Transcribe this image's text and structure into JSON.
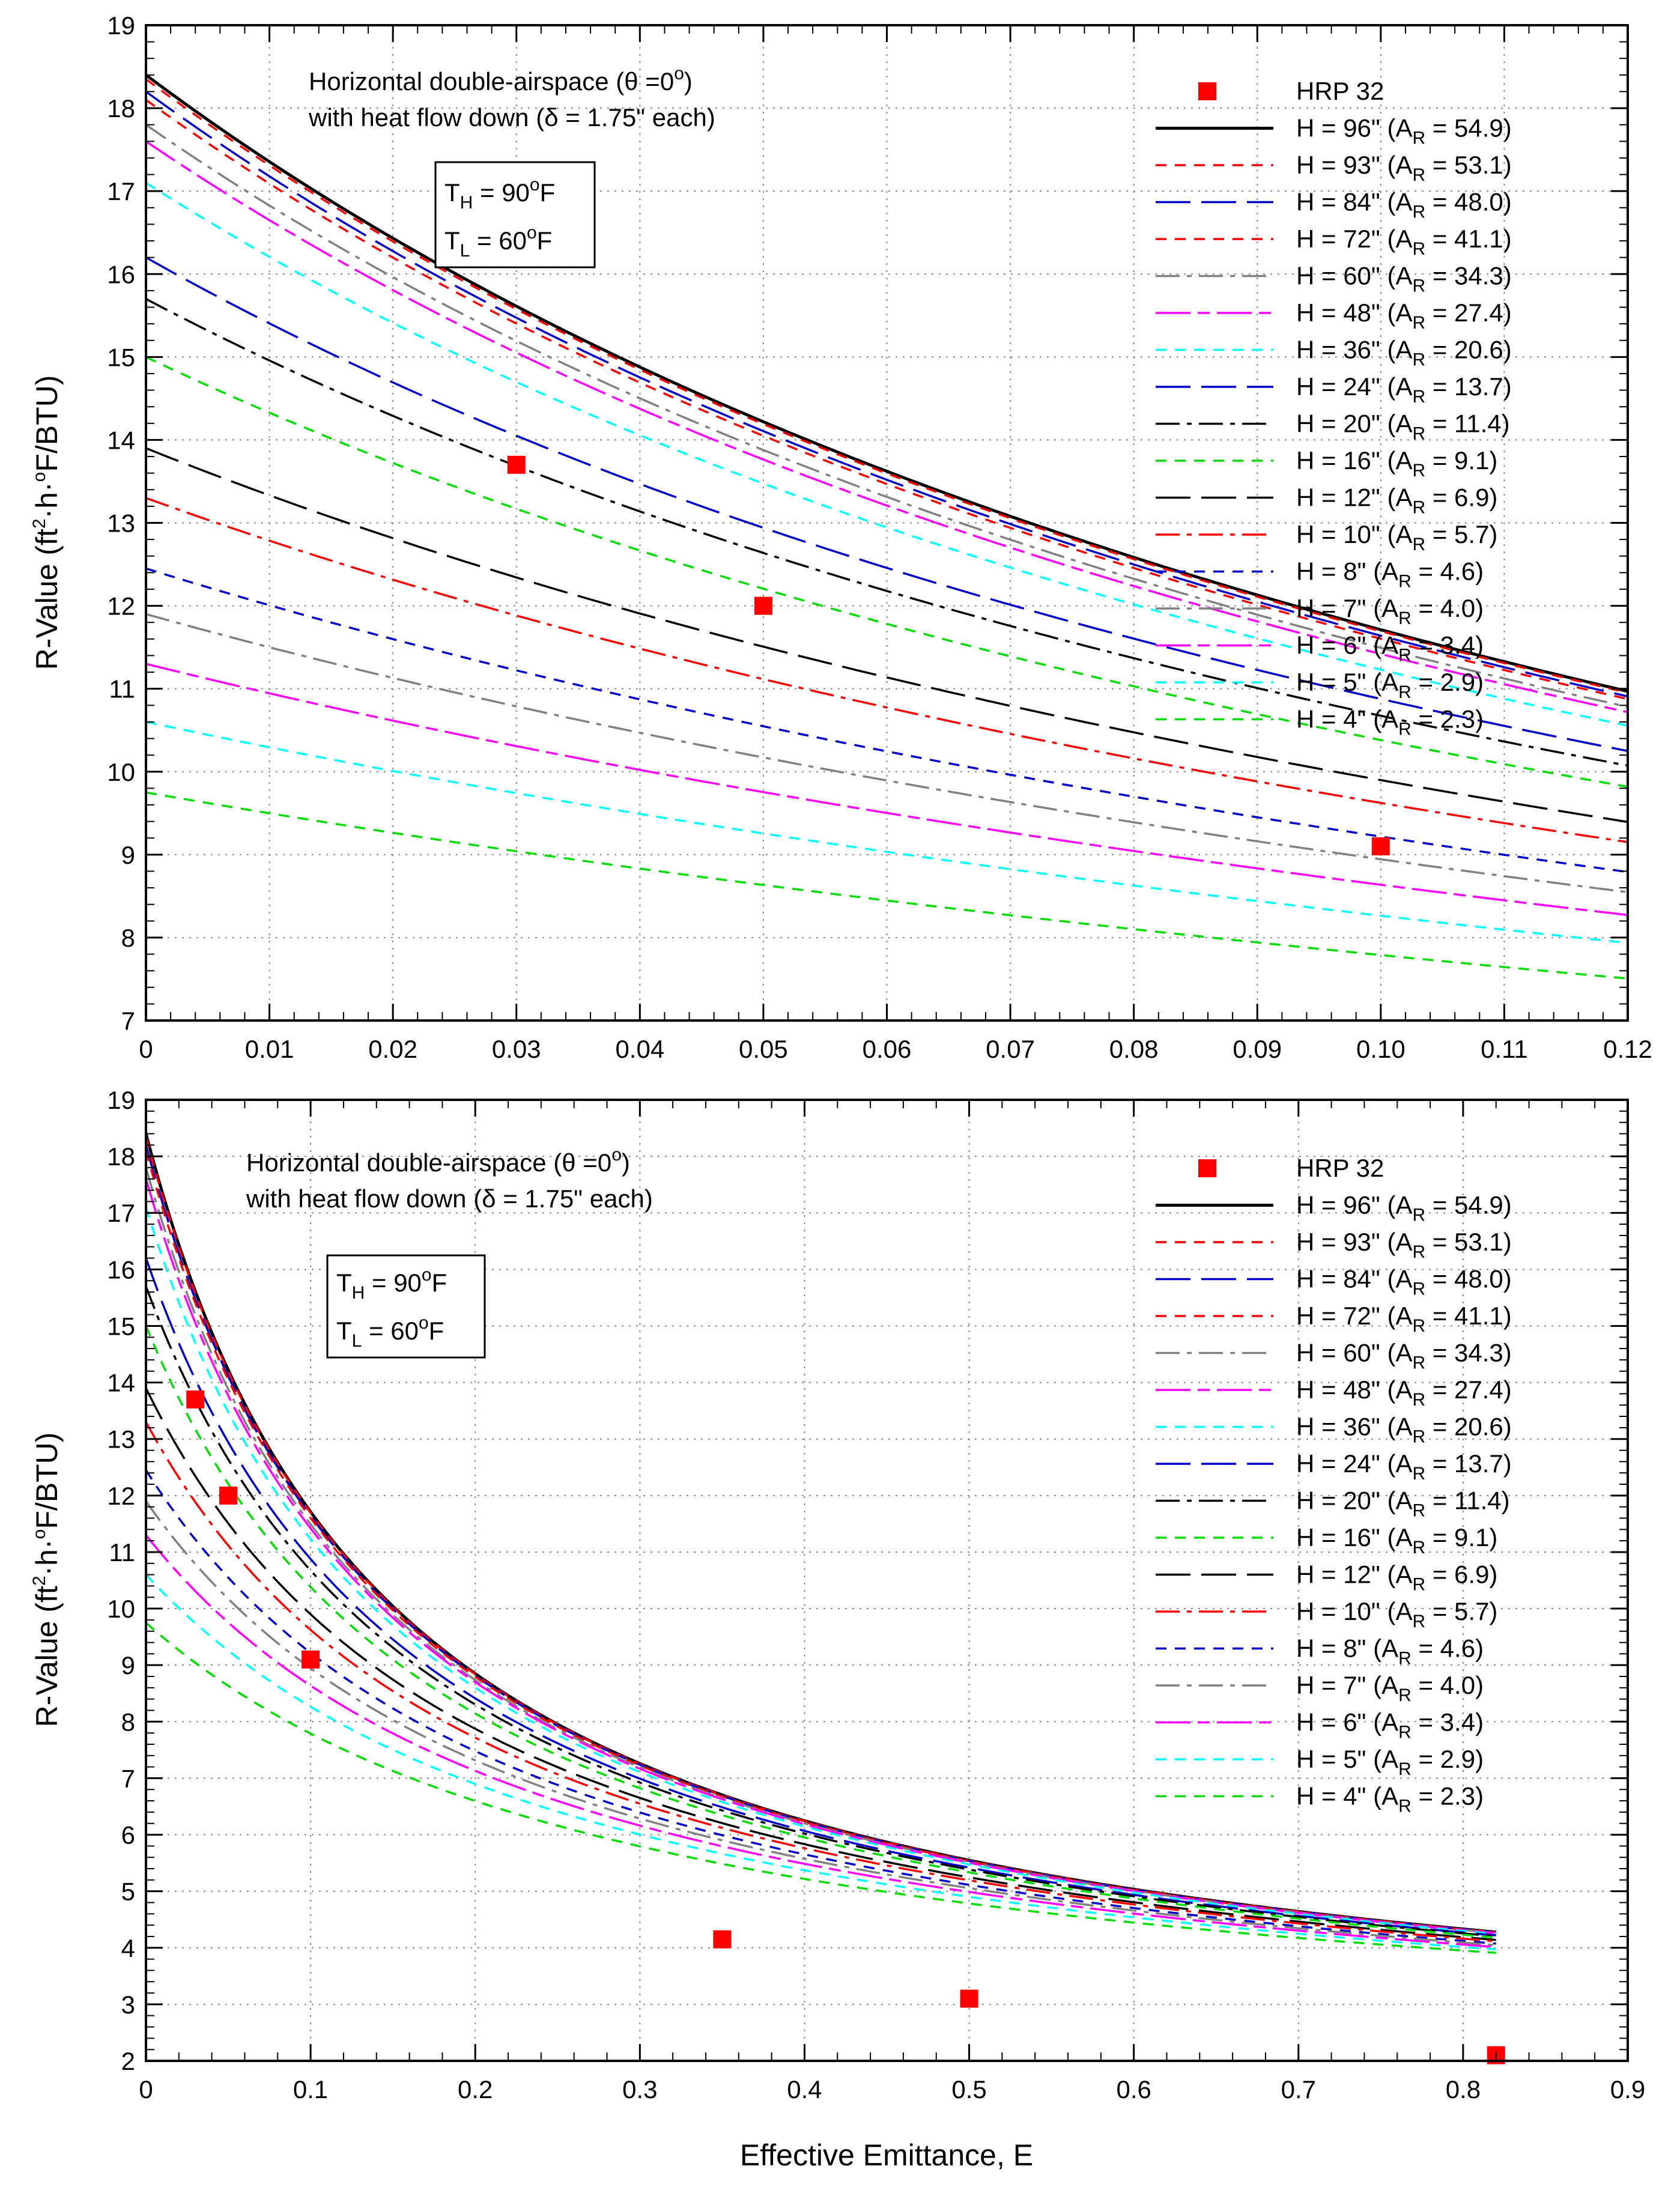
{
  "figure": {
    "x_axis_title": "Effective Emittance, E",
    "y_axis_title": {
      "main": "R-Value (ft",
      "sup": "2",
      "mid": "·h·",
      "sup2": "o",
      "tail": "F/BTU)"
    }
  },
  "annotations": {
    "title_line1": {
      "pre": "Horizontal double-airspace (θ =0",
      "sup": "o",
      "post": ")"
    },
    "title_line2": "with heat flow down (δ = 1.75\" each)",
    "th": {
      "t": "T",
      "sub": "H",
      "eq": " = 90",
      "sup": "o",
      "unit": "F"
    },
    "tl": {
      "t": "T",
      "sub": "L",
      "eq": " = 60",
      "sup": "o",
      "unit": "F"
    }
  },
  "chart_data": [
    {
      "type": "line",
      "panel": "top",
      "xlim": [
        0,
        0.12
      ],
      "ylim": [
        7,
        19
      ],
      "x_ticks": [
        "0",
        "0.01",
        "0.02",
        "0.03",
        "0.04",
        "0.05",
        "0.06",
        "0.07",
        "0.08",
        "0.09",
        "0.10",
        "0.11",
        "0.12"
      ],
      "y_ticks": [
        "7",
        "8",
        "9",
        "10",
        "11",
        "12",
        "13",
        "14",
        "15",
        "16",
        "17",
        "18",
        "19"
      ],
      "grid": true,
      "legend_position": "top-right"
    },
    {
      "type": "line",
      "panel": "bottom",
      "xlim": [
        0,
        0.9
      ],
      "ylim": [
        2,
        19
      ],
      "x_ticks": [
        "0",
        "0.1",
        "0.2",
        "0.3",
        "0.4",
        "0.5",
        "0.6",
        "0.7",
        "0.8",
        "0.9"
      ],
      "y_ticks": [
        "2",
        "3",
        "4",
        "5",
        "6",
        "7",
        "8",
        "9",
        "10",
        "11",
        "12",
        "13",
        "14",
        "15",
        "16",
        "17",
        "18",
        "19"
      ],
      "grid": true,
      "legend_position": "top-right"
    }
  ],
  "markers": {
    "name": "HRP 32",
    "color": "#ff0000",
    "points": [
      {
        "x": 0.03,
        "y": 13.7
      },
      {
        "x": 0.05,
        "y": 12.0
      },
      {
        "x": 0.1,
        "y": 9.1
      },
      {
        "x": 0.35,
        "y": 4.15
      },
      {
        "x": 0.5,
        "y": 3.1
      },
      {
        "x": 0.82,
        "y": 2.1
      }
    ]
  },
  "series": [
    {
      "h": "H = 96\"",
      "ar": "54.9",
      "r0": 18.4,
      "color": "#000000",
      "dash": "solid"
    },
    {
      "h": "H = 93\"",
      "ar": "53.1",
      "r0": 18.35,
      "color": "#ff0000",
      "dash": "short"
    },
    {
      "h": "H = 84\"",
      "ar": "48.0",
      "r0": 18.2,
      "color": "#0000cc",
      "dash": "long"
    },
    {
      "h": "H = 72\"",
      "ar": "41.1",
      "r0": 18.1,
      "color": "#ff0000",
      "dash": "short"
    },
    {
      "h": "H = 60\"",
      "ar": "34.3",
      "r0": 17.8,
      "color": "#808080",
      "dash": "dashdot"
    },
    {
      "h": "H = 48\"",
      "ar": "27.4",
      "r0": 17.6,
      "color": "#ff00ff",
      "dash": "longshort"
    },
    {
      "h": "H = 36\"",
      "ar": "20.6",
      "r0": 17.1,
      "color": "#00ffff",
      "dash": "short"
    },
    {
      "h": "H = 24\"",
      "ar": "13.7",
      "r0": 16.2,
      "color": "#0000cc",
      "dash": "long"
    },
    {
      "h": "H = 20\"",
      "ar": "11.4",
      "r0": 15.7,
      "color": "#000000",
      "dash": "dashdot"
    },
    {
      "h": "H = 16\"",
      "ar": "9.1",
      "r0": 15.0,
      "color": "#00dd00",
      "dash": "short"
    },
    {
      "h": "H = 12\"",
      "ar": "6.9",
      "r0": 13.9,
      "color": "#000000",
      "dash": "long"
    },
    {
      "h": "H = 10\"",
      "ar": "5.7",
      "r0": 13.3,
      "color": "#ff0000",
      "dash": "dashdot"
    },
    {
      "h": "H = 8\"",
      "ar": "4.6",
      "r0": 12.45,
      "color": "#0000cc",
      "dash": "short"
    },
    {
      "h": "H = 7\"",
      "ar": "4.0",
      "r0": 11.9,
      "color": "#808080",
      "dash": "dashdot"
    },
    {
      "h": "H = 6\"",
      "ar": "3.4",
      "r0": 11.3,
      "color": "#ff00ff",
      "dash": "longshort"
    },
    {
      "h": "H = 5\"",
      "ar": "2.9",
      "r0": 10.6,
      "color": "#00ffff",
      "dash": "short"
    },
    {
      "h": "H = 4\"",
      "ar": "2.3",
      "r0": 9.75,
      "color": "#00dd00",
      "dash": "short"
    }
  ]
}
